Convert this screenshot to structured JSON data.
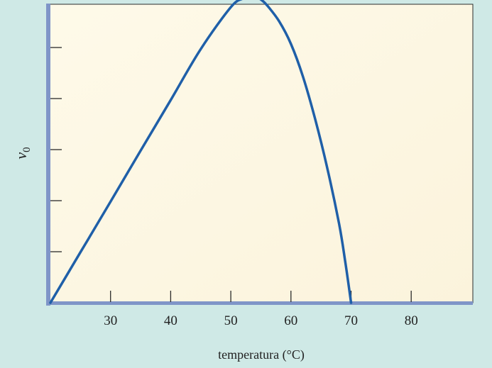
{
  "chart_data": {
    "type": "line",
    "title": "",
    "xlabel": "temperatura (°C)",
    "ylabel_main": "v",
    "ylabel_sub": "0",
    "xlim": [
      20,
      90
    ],
    "ylim": [
      0,
      6
    ],
    "x_ticks": [
      30,
      40,
      50,
      60,
      70,
      80
    ],
    "x_tick_labels": [
      "30",
      "40",
      "50",
      "60",
      "70",
      "80"
    ],
    "y_ticks": [
      1,
      2,
      3,
      4,
      5
    ],
    "y_tick_labels": [],
    "grid": false,
    "series": [
      {
        "color": "#1f5fa8",
        "x": [
          20,
          25,
          30,
          35,
          40,
          45,
          50,
          52,
          53,
          54,
          55,
          56,
          58,
          60,
          62,
          64,
          66,
          68,
          69,
          70
        ],
        "y": [
          0,
          0.99,
          1.98,
          2.98,
          3.97,
          4.97,
          5.79,
          5.96,
          6.0,
          6.0,
          5.94,
          5.83,
          5.52,
          5.07,
          4.43,
          3.61,
          2.66,
          1.55,
          0.83,
          0
        ]
      }
    ]
  },
  "colors": {
    "page_background": "#cfe9e6",
    "plot_background": "#fdf7e5",
    "axis_color": "#7f95c8",
    "curve_color": "#1f5fa8",
    "text_color": "#222222"
  }
}
